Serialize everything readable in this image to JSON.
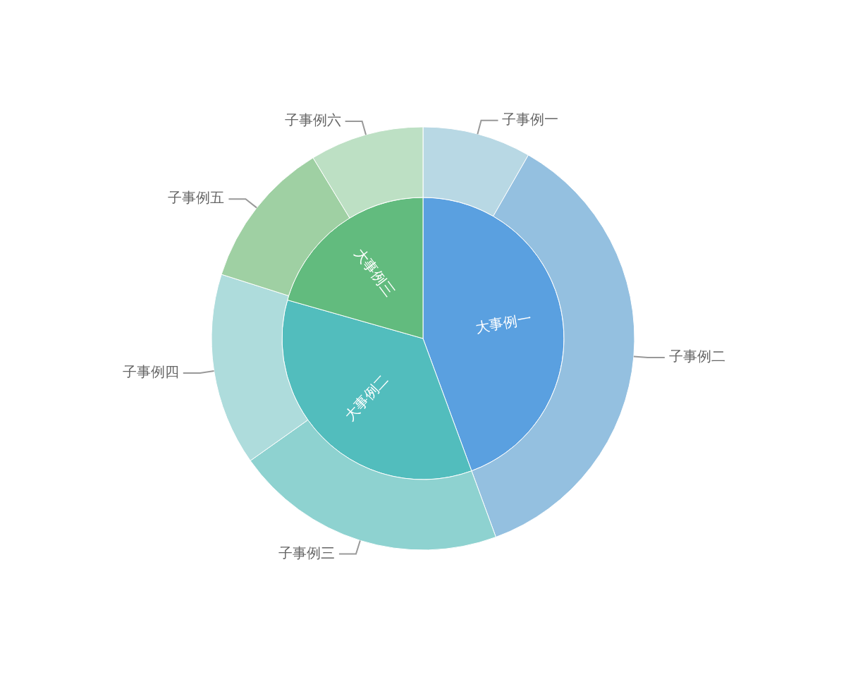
{
  "chart_data": [
    {
      "type": "pie",
      "categories": [
        "大事例一",
        "大事例二",
        "大事例三"
      ],
      "values": [
        44.4,
        35.0,
        20.6
      ],
      "colors": [
        "#5aa0e0",
        "#52bdbd",
        "#62bb7e"
      ]
    },
    {
      "type": "donut",
      "categories": [
        "子事例一",
        "子事例二",
        "子事例三",
        "子事例四",
        "子事例五",
        "子事例六"
      ],
      "values": [
        8.3,
        36.1,
        20.8,
        14.7,
        11.4,
        8.7
      ],
      "colors": [
        "#b8d8e4",
        "#94c0e0",
        "#8ed2d0",
        "#aedcdc",
        "#9fd0a3",
        "#bde0c4"
      ]
    }
  ]
}
